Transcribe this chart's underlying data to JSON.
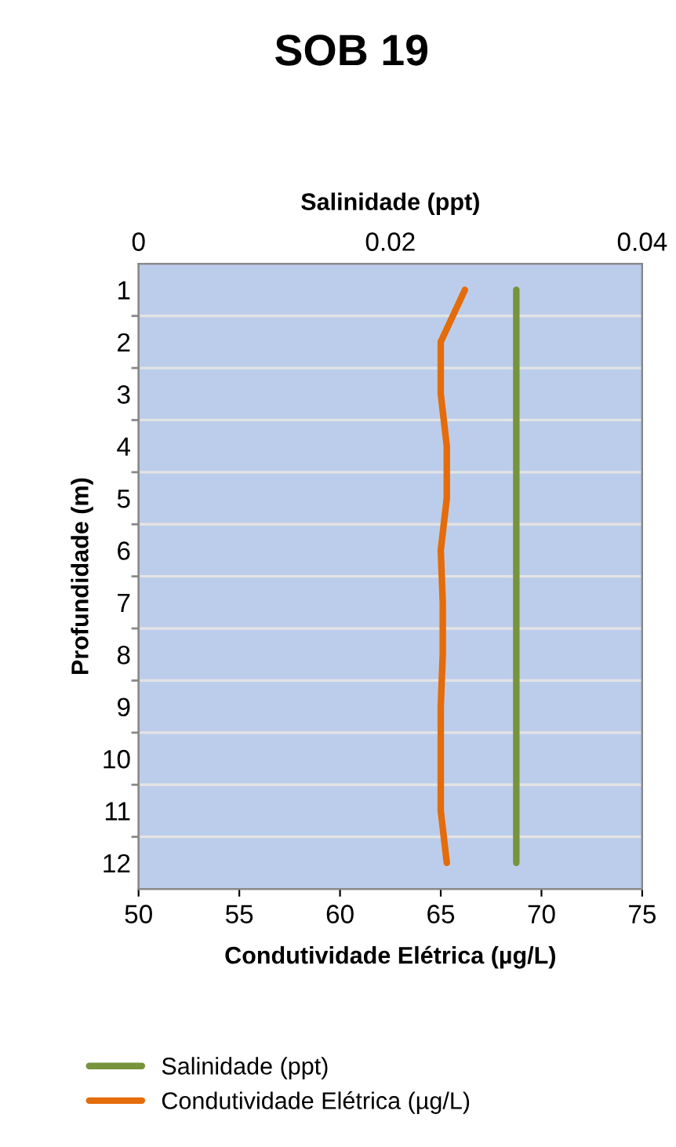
{
  "chart_data": {
    "type": "line",
    "orientation": "horizontal",
    "title": "SOB 19",
    "x2label": "Salinidade (ppt)",
    "xlabel": "Condutividade Elétrica (µg/L)",
    "ylabel": "Profundidade (m)",
    "categories": [
      "1",
      "2",
      "3",
      "4",
      "5",
      "6",
      "7",
      "8",
      "9",
      "10",
      "11",
      "12"
    ],
    "xlim": [
      50,
      75
    ],
    "xticks": [
      50,
      55,
      60,
      65,
      70,
      75
    ],
    "x2lim": [
      0,
      0.04
    ],
    "x2ticks": [
      0,
      0.02,
      0.04
    ],
    "series": [
      {
        "name": "Salinidade (ppt)",
        "color": "#77933c",
        "axis": "x2",
        "values": [
          0.03,
          0.03,
          0.03,
          0.03,
          0.03,
          0.03,
          0.03,
          0.03,
          0.03,
          0.03,
          0.03,
          0.03
        ]
      },
      {
        "name": "Condutividade Elétrica (µg/L)",
        "color": "#e46c0a",
        "values": [
          66.2,
          65.0,
          65.0,
          65.3,
          65.3,
          65.0,
          65.1,
          65.1,
          65.0,
          65.0,
          65.0,
          65.3
        ]
      }
    ],
    "grid": "y",
    "legend": "bottom",
    "marker": "none",
    "line_style": "solid"
  }
}
